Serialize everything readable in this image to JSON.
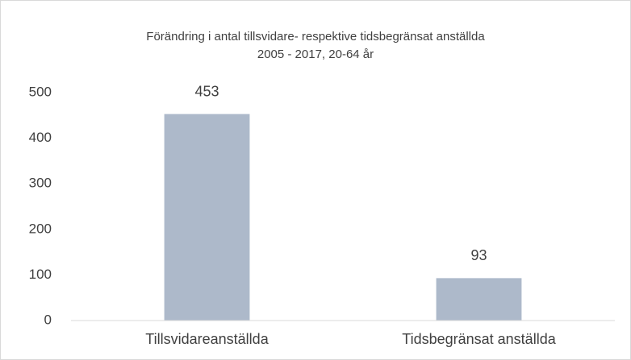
{
  "chart_data": {
    "type": "bar",
    "title": "Förändring i antal tillsvidare- respektive tidsbegränsat anställda",
    "subtitle": "2005 - 2017, 20-64 år",
    "categories": [
      "Tillsvidareanställda",
      "Tidsbegränsat anställda"
    ],
    "values": [
      453,
      93
    ],
    "color": "#adb9ca",
    "ylim": [
      0,
      500
    ],
    "yticks": [
      0,
      100,
      200,
      300,
      400,
      500
    ],
    "grid": false
  }
}
